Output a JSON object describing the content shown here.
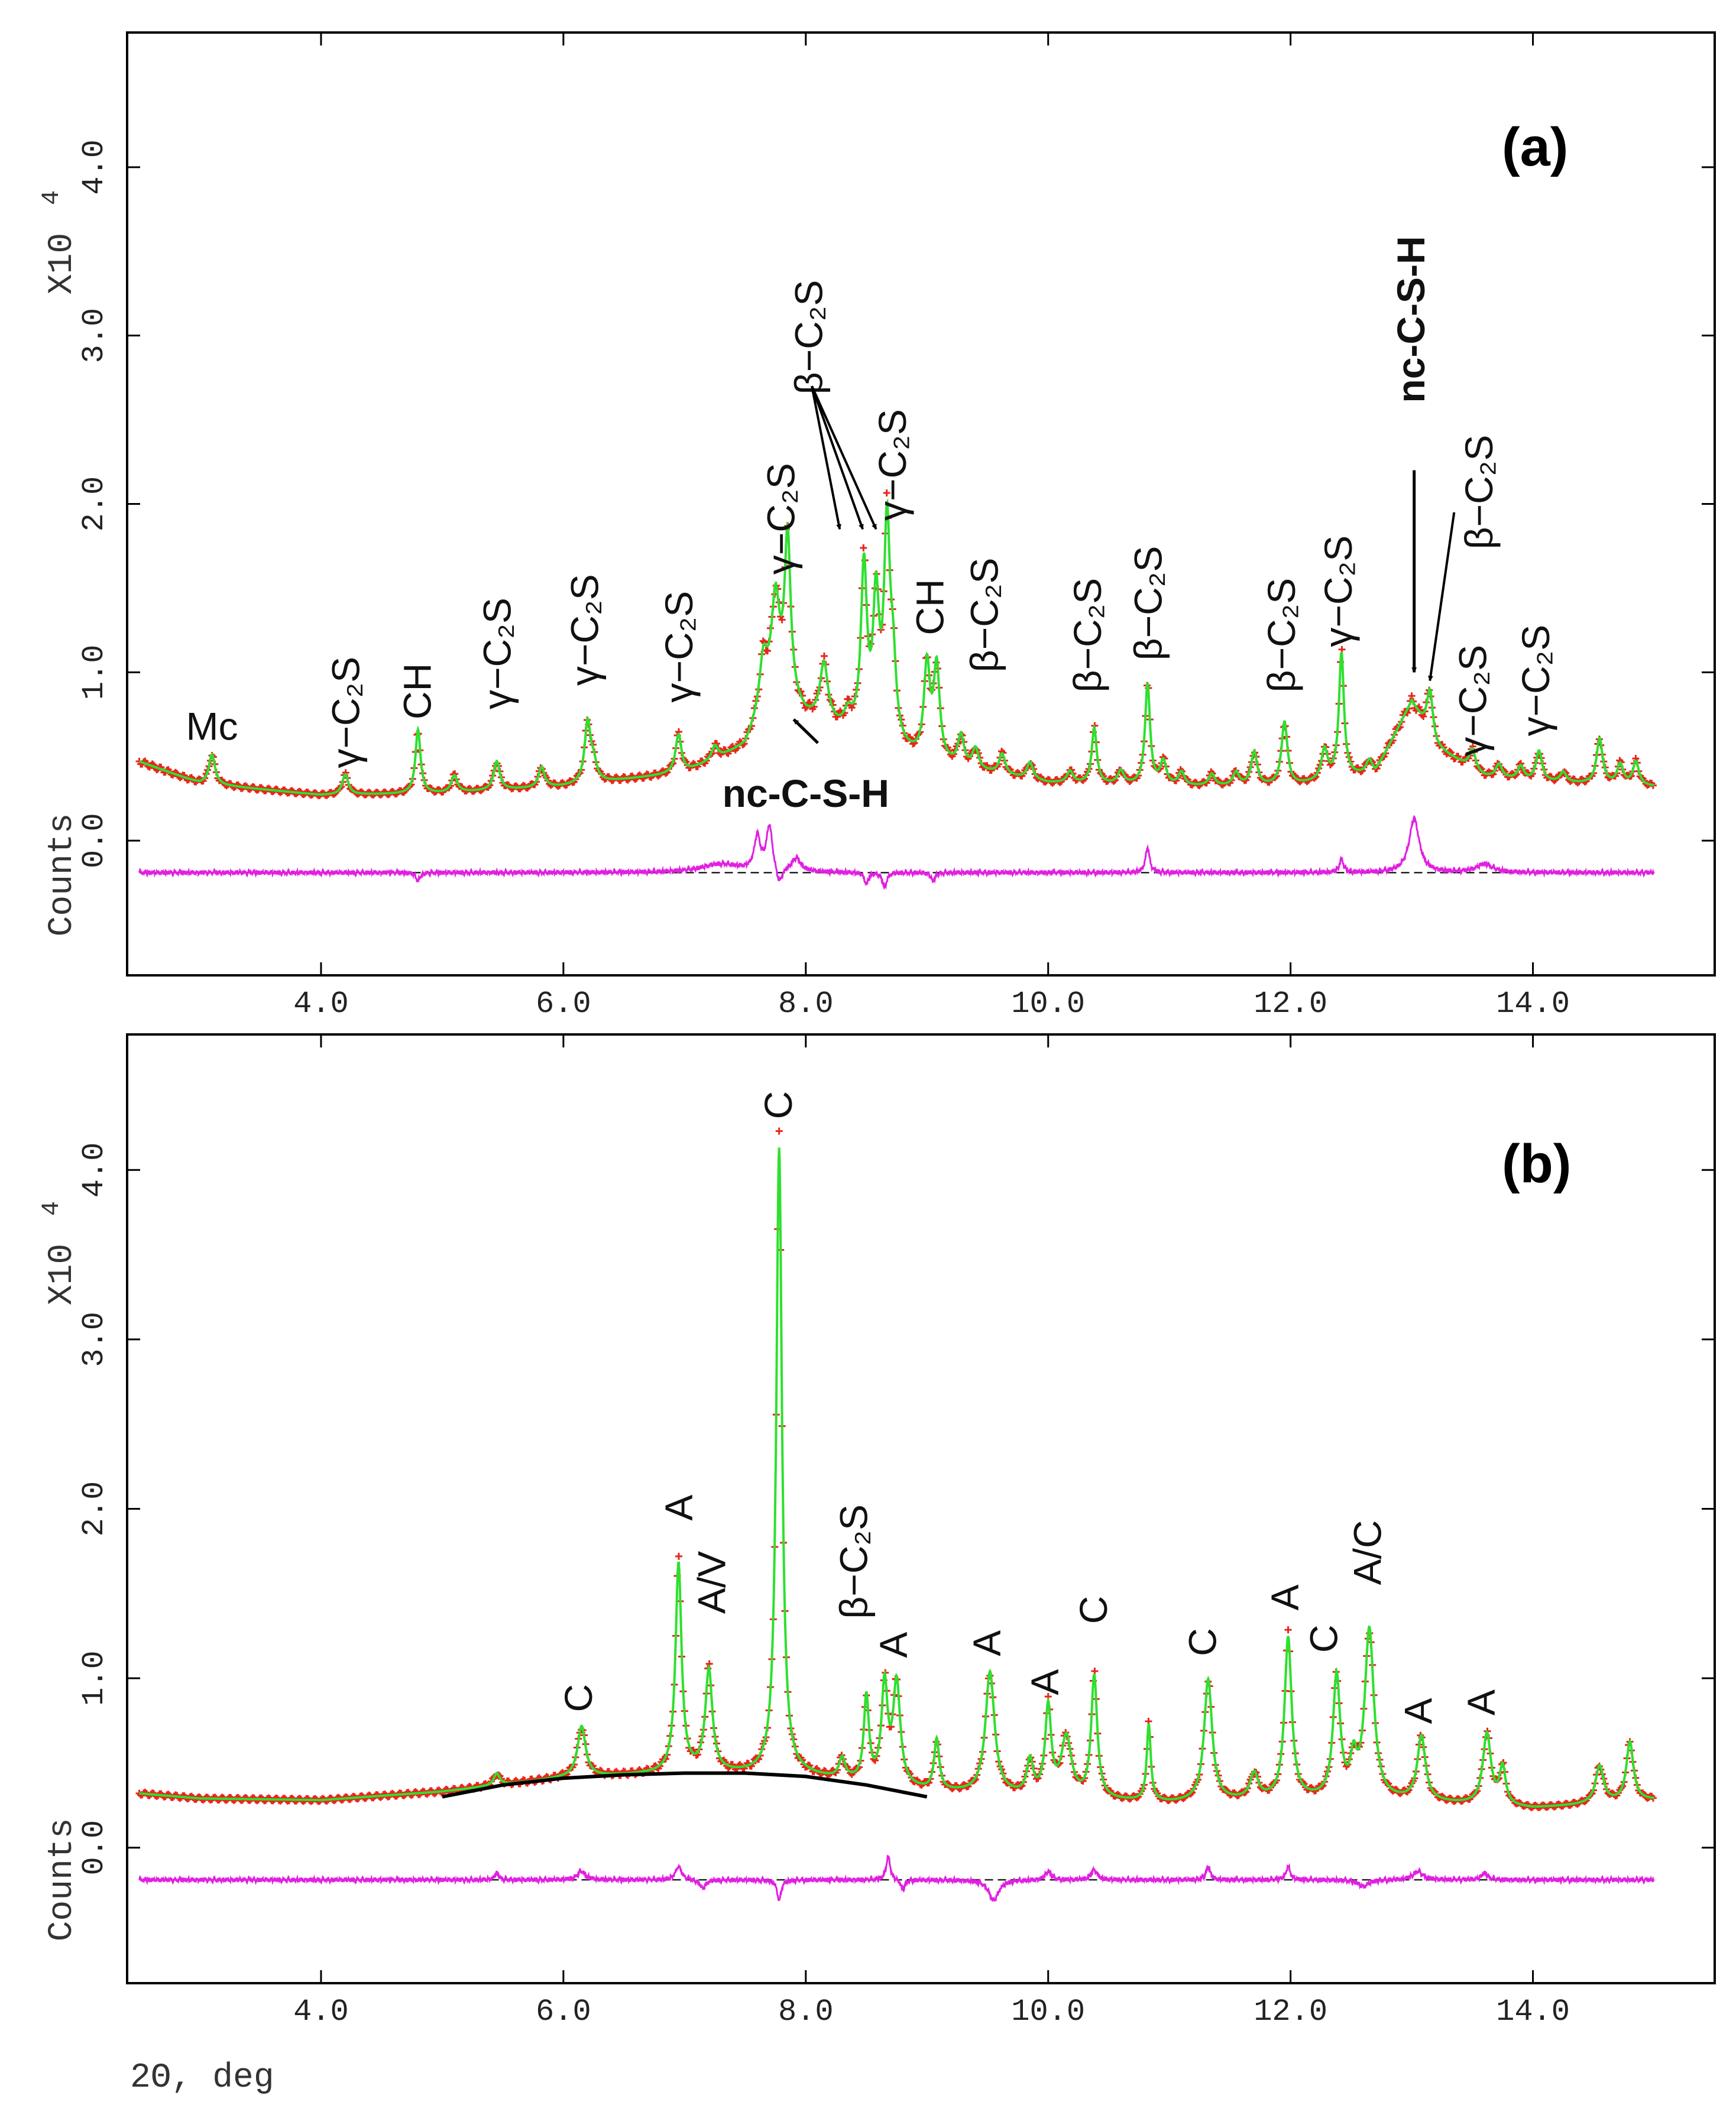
{
  "figure": {
    "xlabel": "2Θ, deg",
    "ylabel": "Counts",
    "yscale_label": "X10",
    "yscale_exp": "4",
    "colors": {
      "observed": "#e8261c",
      "calculated": "#2ee02e",
      "difference": "#e020e0",
      "zero_line": "#222222",
      "background_curve": "#000000"
    }
  },
  "chart_data": [
    {
      "type": "line",
      "panel_label": "(a)",
      "xlim": [
        2.4,
        15.5
      ],
      "ylim": [
        -0.8,
        4.8
      ],
      "xticks": [
        4.0,
        6.0,
        8.0,
        10.0,
        12.0,
        14.0
      ],
      "xtick_labels": [
        "4.0",
        "6.0",
        "8.0",
        "10.0",
        "12.0",
        "14.0"
      ],
      "yticks": [
        0.0,
        1.0,
        2.0,
        3.0,
        4.0
      ],
      "ytick_labels": [
        "0.0",
        "1.0",
        "2.0",
        "3.0",
        "4.0"
      ],
      "difference_offset": -0.19,
      "background": [
        [
          2.5,
          0.47
        ],
        [
          3.0,
          0.34
        ],
        [
          4.0,
          0.27
        ],
        [
          5.0,
          0.28
        ],
        [
          6.0,
          0.32
        ],
        [
          7.0,
          0.4
        ],
        [
          7.5,
          0.55
        ],
        [
          7.75,
          0.9
        ],
        [
          8.0,
          0.72
        ],
        [
          8.5,
          0.58
        ],
        [
          9.0,
          0.46
        ],
        [
          10.0,
          0.34
        ],
        [
          11.0,
          0.32
        ],
        [
          12.0,
          0.32
        ],
        [
          12.7,
          0.4
        ],
        [
          13.0,
          0.82
        ],
        [
          13.2,
          0.55
        ],
        [
          13.6,
          0.38
        ],
        [
          14.0,
          0.35
        ],
        [
          15.0,
          0.32
        ]
      ],
      "peaks": [
        {
          "x": 3.1,
          "y": 0.18,
          "w": 0.03
        },
        {
          "x": 4.2,
          "y": 0.12,
          "w": 0.03
        },
        {
          "x": 4.8,
          "y": 0.38,
          "w": 0.025
        },
        {
          "x": 5.1,
          "y": 0.1,
          "w": 0.03
        },
        {
          "x": 5.45,
          "y": 0.17,
          "w": 0.03
        },
        {
          "x": 5.82,
          "y": 0.12,
          "w": 0.03
        },
        {
          "x": 6.2,
          "y": 0.36,
          "w": 0.03
        },
        {
          "x": 6.25,
          "y": 0.1,
          "w": 0.03
        },
        {
          "x": 6.95,
          "y": 0.23,
          "w": 0.03
        },
        {
          "x": 7.25,
          "y": 0.08,
          "w": 0.03
        },
        {
          "x": 7.65,
          "y": 0.3,
          "w": 0.04
        },
        {
          "x": 7.75,
          "y": 0.5,
          "w": 0.04
        },
        {
          "x": 7.85,
          "y": 0.95,
          "w": 0.03
        },
        {
          "x": 8.15,
          "y": 0.35,
          "w": 0.04
        },
        {
          "x": 8.35,
          "y": 0.1,
          "w": 0.04
        },
        {
          "x": 8.48,
          "y": 1.0,
          "w": 0.03
        },
        {
          "x": 8.58,
          "y": 0.8,
          "w": 0.03
        },
        {
          "x": 8.67,
          "y": 1.25,
          "w": 0.03
        },
        {
          "x": 8.72,
          "y": 0.4,
          "w": 0.03
        },
        {
          "x": 9.0,
          "y": 0.55,
          "w": 0.03
        },
        {
          "x": 9.08,
          "y": 0.55,
          "w": 0.03
        },
        {
          "x": 9.28,
          "y": 0.18,
          "w": 0.03
        },
        {
          "x": 9.4,
          "y": 0.12,
          "w": 0.03
        },
        {
          "x": 9.62,
          "y": 0.12,
          "w": 0.03
        },
        {
          "x": 9.85,
          "y": 0.1,
          "w": 0.03
        },
        {
          "x": 10.18,
          "y": 0.07,
          "w": 0.03
        },
        {
          "x": 10.38,
          "y": 0.33,
          "w": 0.025
        },
        {
          "x": 10.6,
          "y": 0.08,
          "w": 0.03
        },
        {
          "x": 10.82,
          "y": 0.6,
          "w": 0.025
        },
        {
          "x": 10.95,
          "y": 0.14,
          "w": 0.03
        },
        {
          "x": 11.1,
          "y": 0.08,
          "w": 0.03
        },
        {
          "x": 11.35,
          "y": 0.07,
          "w": 0.03
        },
        {
          "x": 11.55,
          "y": 0.08,
          "w": 0.03
        },
        {
          "x": 11.7,
          "y": 0.2,
          "w": 0.03
        },
        {
          "x": 11.95,
          "y": 0.38,
          "w": 0.03
        },
        {
          "x": 12.28,
          "y": 0.18,
          "w": 0.03
        },
        {
          "x": 12.42,
          "y": 0.74,
          "w": 0.025
        },
        {
          "x": 12.65,
          "y": 0.08,
          "w": 0.03
        },
        {
          "x": 13.15,
          "y": 0.28,
          "w": 0.03
        },
        {
          "x": 13.5,
          "y": 0.12,
          "w": 0.03
        },
        {
          "x": 13.72,
          "y": 0.08,
          "w": 0.03
        },
        {
          "x": 13.9,
          "y": 0.08,
          "w": 0.03
        },
        {
          "x": 14.05,
          "y": 0.18,
          "w": 0.03
        },
        {
          "x": 14.25,
          "y": 0.06,
          "w": 0.03
        },
        {
          "x": 14.55,
          "y": 0.27,
          "w": 0.03
        },
        {
          "x": 14.72,
          "y": 0.12,
          "w": 0.03
        },
        {
          "x": 14.85,
          "y": 0.14,
          "w": 0.03
        }
      ],
      "diff_features": [
        {
          "x": 4.8,
          "a": -0.05,
          "w": 0.02
        },
        {
          "x": 7.3,
          "a": 0.05,
          "w": 0.2
        },
        {
          "x": 7.6,
          "a": 0.2,
          "w": 0.03
        },
        {
          "x": 7.7,
          "a": 0.27,
          "w": 0.03
        },
        {
          "x": 7.78,
          "a": -0.1,
          "w": 0.03
        },
        {
          "x": 7.92,
          "a": 0.08,
          "w": 0.05
        },
        {
          "x": 8.5,
          "a": -0.07,
          "w": 0.02
        },
        {
          "x": 8.65,
          "a": -0.09,
          "w": 0.02
        },
        {
          "x": 9.05,
          "a": -0.05,
          "w": 0.02
        },
        {
          "x": 10.82,
          "a": 0.15,
          "w": 0.02
        },
        {
          "x": 12.42,
          "a": 0.08,
          "w": 0.02
        },
        {
          "x": 13.02,
          "a": 0.32,
          "w": 0.05
        },
        {
          "x": 13.6,
          "a": 0.05,
          "w": 0.08
        }
      ],
      "annotations": [
        {
          "text": "Mc",
          "x": 3.1,
          "y": 0.6,
          "rot": 0
        },
        {
          "text": "γ−C₂S",
          "x": 4.23,
          "y": 0.43,
          "rot": -90
        },
        {
          "text": "CH",
          "x": 4.82,
          "y": 0.72,
          "rot": -90
        },
        {
          "text": "γ−C₂S",
          "x": 5.48,
          "y": 0.78,
          "rot": -90
        },
        {
          "text": "γ−C₂S",
          "x": 6.2,
          "y": 0.92,
          "rot": -90
        },
        {
          "text": "γ−C₂S",
          "x": 6.98,
          "y": 0.82,
          "rot": -90
        },
        {
          "text": "γ−C₂S",
          "x": 7.82,
          "y": 1.58,
          "rot": -90
        },
        {
          "text": "β−C₂S",
          "x": 8.05,
          "y": 2.65,
          "rot": -90
        },
        {
          "text": "γ−C₂S",
          "x": 8.74,
          "y": 1.9,
          "rot": -90
        },
        {
          "text": "CH",
          "x": 9.05,
          "y": 1.22,
          "rot": -90
        },
        {
          "text": "β−C₂S",
          "x": 9.5,
          "y": 1.0,
          "rot": -90
        },
        {
          "text": "β−C₂S",
          "x": 10.35,
          "y": 0.88,
          "rot": -90
        },
        {
          "text": "β−C₂S",
          "x": 10.85,
          "y": 1.07,
          "rot": -90
        },
        {
          "text": "β−C₂S",
          "x": 11.95,
          "y": 0.88,
          "rot": -90
        },
        {
          "text": "γ−C₂S",
          "x": 12.42,
          "y": 1.15,
          "rot": -90
        },
        {
          "text": "β−C₂S",
          "x": 13.58,
          "y": 1.73,
          "rot": -90
        },
        {
          "text": "γ−C₂S",
          "x": 13.53,
          "y": 0.5,
          "rot": -90
        },
        {
          "text": "γ−C₂S",
          "x": 14.05,
          "y": 0.62,
          "rot": -90
        }
      ],
      "callouts": [
        {
          "text": "nc-C-S-H",
          "tx": 8.0,
          "ty": 0.2,
          "rot": 0,
          "arrows": [
            {
              "x1": 8.1,
              "y1": 0.58,
              "x2": 7.9,
              "y2": 0.72
            }
          ]
        },
        {
          "text": "nc-C-S-H",
          "tx": 13.02,
          "ty": 2.6,
          "rot": -90,
          "arrows": [
            {
              "x1": 13.02,
              "y1": 2.2,
              "x2": 13.02,
              "y2": 1.0
            }
          ]
        }
      ],
      "plain_arrows": [
        {
          "x1": 8.05,
          "y1": 2.7,
          "x2": 8.28,
          "y2": 1.85
        },
        {
          "x1": 8.05,
          "y1": 2.7,
          "x2": 8.47,
          "y2": 1.85
        },
        {
          "x1": 8.05,
          "y1": 2.7,
          "x2": 8.58,
          "y2": 1.85
        },
        {
          "x1": 13.35,
          "y1": 1.95,
          "x2": 13.15,
          "y2": 0.95
        }
      ]
    },
    {
      "type": "line",
      "panel_label": "(b)",
      "xlim": [
        2.4,
        15.5
      ],
      "ylim": [
        -0.8,
        4.8
      ],
      "xticks": [
        4.0,
        6.0,
        8.0,
        10.0,
        12.0,
        14.0
      ],
      "xtick_labels": [
        "4.0",
        "6.0",
        "8.0",
        "10.0",
        "12.0",
        "14.0"
      ],
      "yticks": [
        0.0,
        1.0,
        2.0,
        3.0,
        4.0
      ],
      "ytick_labels": [
        "0.0",
        "1.0",
        "2.0",
        "3.0",
        "4.0"
      ],
      "difference_offset": -0.19,
      "background": [
        [
          2.5,
          0.32
        ],
        [
          3.0,
          0.29
        ],
        [
          4.0,
          0.28
        ],
        [
          5.0,
          0.33
        ],
        [
          6.0,
          0.41
        ],
        [
          7.0,
          0.44
        ],
        [
          8.0,
          0.42
        ],
        [
          9.0,
          0.33
        ],
        [
          10.0,
          0.29
        ],
        [
          11.0,
          0.26
        ],
        [
          12.0,
          0.28
        ],
        [
          13.0,
          0.27
        ],
        [
          14.0,
          0.23
        ],
        [
          15.0,
          0.28
        ]
      ],
      "background_curve": [
        [
          5.0,
          0.3
        ],
        [
          5.5,
          0.37
        ],
        [
          6.0,
          0.41
        ],
        [
          6.5,
          0.43
        ],
        [
          7.0,
          0.44
        ],
        [
          7.5,
          0.44
        ],
        [
          8.0,
          0.42
        ],
        [
          8.5,
          0.37
        ],
        [
          9.0,
          0.3
        ]
      ],
      "peaks": [
        {
          "x": 5.45,
          "y": 0.07,
          "w": 0.03
        },
        {
          "x": 6.15,
          "y": 0.3,
          "w": 0.04
        },
        {
          "x": 6.95,
          "y": 1.23,
          "w": 0.03
        },
        {
          "x": 7.2,
          "y": 0.6,
          "w": 0.035
        },
        {
          "x": 7.78,
          "y": 3.7,
          "w": 0.028
        },
        {
          "x": 8.3,
          "y": 0.12,
          "w": 0.03
        },
        {
          "x": 8.5,
          "y": 0.5,
          "w": 0.025
        },
        {
          "x": 8.65,
          "y": 0.58,
          "w": 0.03
        },
        {
          "x": 8.75,
          "y": 0.6,
          "w": 0.035
        },
        {
          "x": 9.08,
          "y": 0.3,
          "w": 0.025
        },
        {
          "x": 9.52,
          "y": 0.72,
          "w": 0.045
        },
        {
          "x": 9.85,
          "y": 0.2,
          "w": 0.03
        },
        {
          "x": 10.0,
          "y": 0.52,
          "w": 0.03
        },
        {
          "x": 10.15,
          "y": 0.35,
          "w": 0.05
        },
        {
          "x": 10.38,
          "y": 0.72,
          "w": 0.03
        },
        {
          "x": 10.83,
          "y": 0.45,
          "w": 0.02
        },
        {
          "x": 11.32,
          "y": 0.72,
          "w": 0.04
        },
        {
          "x": 11.7,
          "y": 0.15,
          "w": 0.04
        },
        {
          "x": 11.98,
          "y": 0.95,
          "w": 0.035
        },
        {
          "x": 12.38,
          "y": 0.72,
          "w": 0.035
        },
        {
          "x": 12.52,
          "y": 0.2,
          "w": 0.03
        },
        {
          "x": 12.65,
          "y": 1.0,
          "w": 0.045
        },
        {
          "x": 13.08,
          "y": 0.38,
          "w": 0.04
        },
        {
          "x": 13.62,
          "y": 0.42,
          "w": 0.04
        },
        {
          "x": 13.75,
          "y": 0.22,
          "w": 0.03
        },
        {
          "x": 14.55,
          "y": 0.22,
          "w": 0.04
        },
        {
          "x": 14.8,
          "y": 0.35,
          "w": 0.035
        }
      ],
      "diff_features": [
        {
          "x": 5.45,
          "a": 0.04,
          "w": 0.02
        },
        {
          "x": 6.15,
          "a": 0.05,
          "w": 0.04
        },
        {
          "x": 6.95,
          "a": 0.08,
          "w": 0.03
        },
        {
          "x": 7.15,
          "a": -0.05,
          "w": 0.03
        },
        {
          "x": 7.78,
          "a": -0.12,
          "w": 0.02
        },
        {
          "x": 8.68,
          "a": 0.14,
          "w": 0.02
        },
        {
          "x": 8.8,
          "a": -0.06,
          "w": 0.02
        },
        {
          "x": 9.55,
          "a": -0.12,
          "w": 0.05
        },
        {
          "x": 10.0,
          "a": 0.05,
          "w": 0.03
        },
        {
          "x": 10.38,
          "a": 0.06,
          "w": 0.03
        },
        {
          "x": 11.32,
          "a": 0.08,
          "w": 0.02
        },
        {
          "x": 11.98,
          "a": 0.08,
          "w": 0.02
        },
        {
          "x": 12.6,
          "a": -0.04,
          "w": 0.05
        },
        {
          "x": 13.05,
          "a": 0.05,
          "w": 0.05
        },
        {
          "x": 13.6,
          "a": 0.04,
          "w": 0.03
        }
      ],
      "annotations": [
        {
          "text": "C",
          "x": 6.15,
          "y": 0.8,
          "rot": -90
        },
        {
          "text": "A",
          "x": 6.98,
          "y": 1.93,
          "rot": -90
        },
        {
          "text": "A/V",
          "x": 7.25,
          "y": 1.38,
          "rot": -90
        },
        {
          "text": "C",
          "x": 7.8,
          "y": 4.3,
          "rot": -90
        },
        {
          "text": "β−C₂S",
          "x": 8.42,
          "y": 1.35,
          "rot": -90
        },
        {
          "text": "A",
          "x": 8.75,
          "y": 1.12,
          "rot": -90
        },
        {
          "text": "A",
          "x": 9.52,
          "y": 1.13,
          "rot": -90
        },
        {
          "text": "A",
          "x": 10.0,
          "y": 0.9,
          "rot": -90
        },
        {
          "text": "C",
          "x": 10.4,
          "y": 1.32,
          "rot": -90
        },
        {
          "text": "C",
          "x": 11.3,
          "y": 1.13,
          "rot": -90
        },
        {
          "text": "A",
          "x": 11.98,
          "y": 1.4,
          "rot": -90
        },
        {
          "text": "C",
          "x": 12.3,
          "y": 1.15,
          "rot": -90
        },
        {
          "text": "A/C",
          "x": 12.66,
          "y": 1.55,
          "rot": -90
        },
        {
          "text": "A",
          "x": 13.08,
          "y": 0.73,
          "rot": -90
        },
        {
          "text": "A",
          "x": 13.6,
          "y": 0.78,
          "rot": -90
        }
      ],
      "callouts": [],
      "plain_arrows": []
    }
  ]
}
